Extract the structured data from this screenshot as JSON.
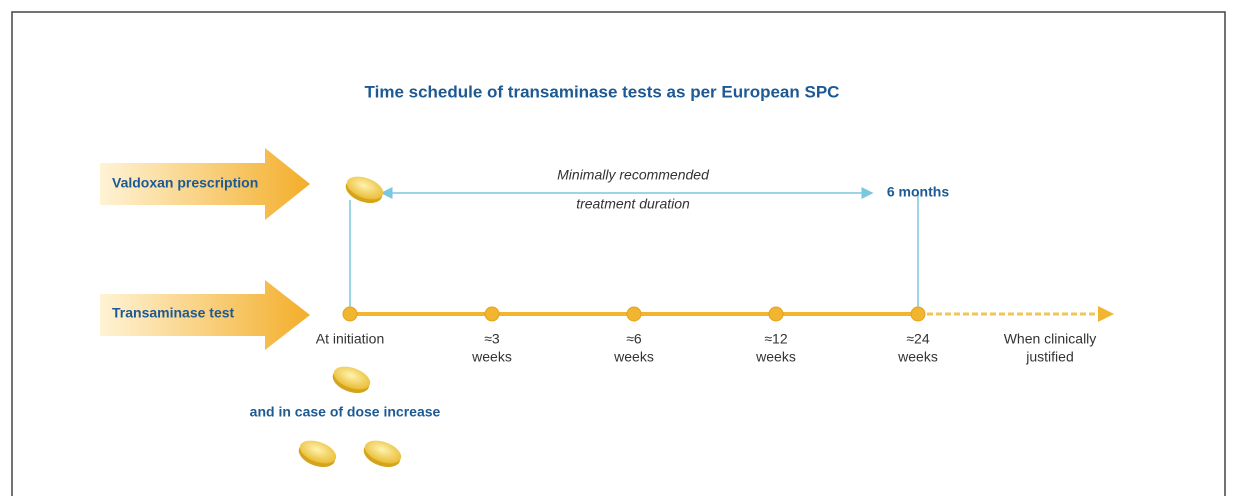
{
  "title": "Time schedule of transaminase tests as per European SPC",
  "rows": [
    {
      "label": "Valdoxan prescription"
    },
    {
      "label": "Transaminase test"
    }
  ],
  "duration": {
    "lines": [
      "Minimally recommended",
      "treatment duration"
    ],
    "end": "6 months"
  },
  "timeline": [
    {
      "lines": [
        "At initiation"
      ]
    },
    {
      "lines": [
        "≈3",
        "weeks"
      ]
    },
    {
      "lines": [
        "≈6",
        "weeks"
      ]
    },
    {
      "lines": [
        "≈12",
        "weeks"
      ]
    },
    {
      "lines": [
        "≈24",
        "weeks"
      ]
    },
    {
      "lines": [
        "When clinically",
        "justified"
      ]
    }
  ],
  "dose_note": "and in case of dose increase"
}
